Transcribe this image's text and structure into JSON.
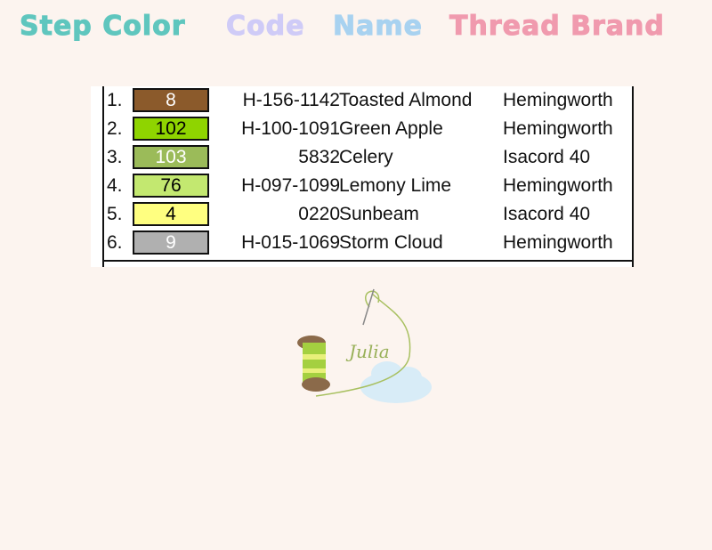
{
  "headers": [
    {
      "label": "Step Color",
      "color": "#5fc6be"
    },
    {
      "label": "Code",
      "color": "#cfcbf7"
    },
    {
      "label": "Name",
      "color": "#a8d2f0"
    },
    {
      "label": "Thread Brand",
      "color": "#f09aae"
    }
  ],
  "rows": [
    {
      "step": "1.",
      "color_number": "8",
      "swatch": "#8b5a2b",
      "text_color": "#ffffff",
      "code": "H-156-1142",
      "name": "Toasted Almond",
      "brand": "Hemingworth"
    },
    {
      "step": "2.",
      "color_number": "102",
      "swatch": "#8fd400",
      "text_color": "#000000",
      "code": "H-100-1091",
      "name": "Green Apple",
      "brand": "Hemingworth"
    },
    {
      "step": "3.",
      "color_number": "103",
      "swatch": "#9bbb59",
      "text_color": "#ffffff",
      "code": "5832",
      "name": "Celery",
      "brand": "Isacord 40"
    },
    {
      "step": "4.",
      "color_number": "76",
      "swatch": "#c3e870",
      "text_color": "#000000",
      "code": "H-097-1099",
      "name": "Lemony Lime",
      "brand": "Hemingworth"
    },
    {
      "step": "5.",
      "color_number": "4",
      "swatch": "#ffff80",
      "text_color": "#000000",
      "code": "0220",
      "name": "Sunbeam",
      "brand": "Isacord 40"
    },
    {
      "step": "6.",
      "color_number": "9",
      "swatch": "#b0b0b0",
      "text_color": "#ffffff",
      "code": "H-015-1069",
      "name": "Storm Cloud",
      "brand": "Hemingworth"
    }
  ],
  "logo": {
    "text": "Julia"
  }
}
